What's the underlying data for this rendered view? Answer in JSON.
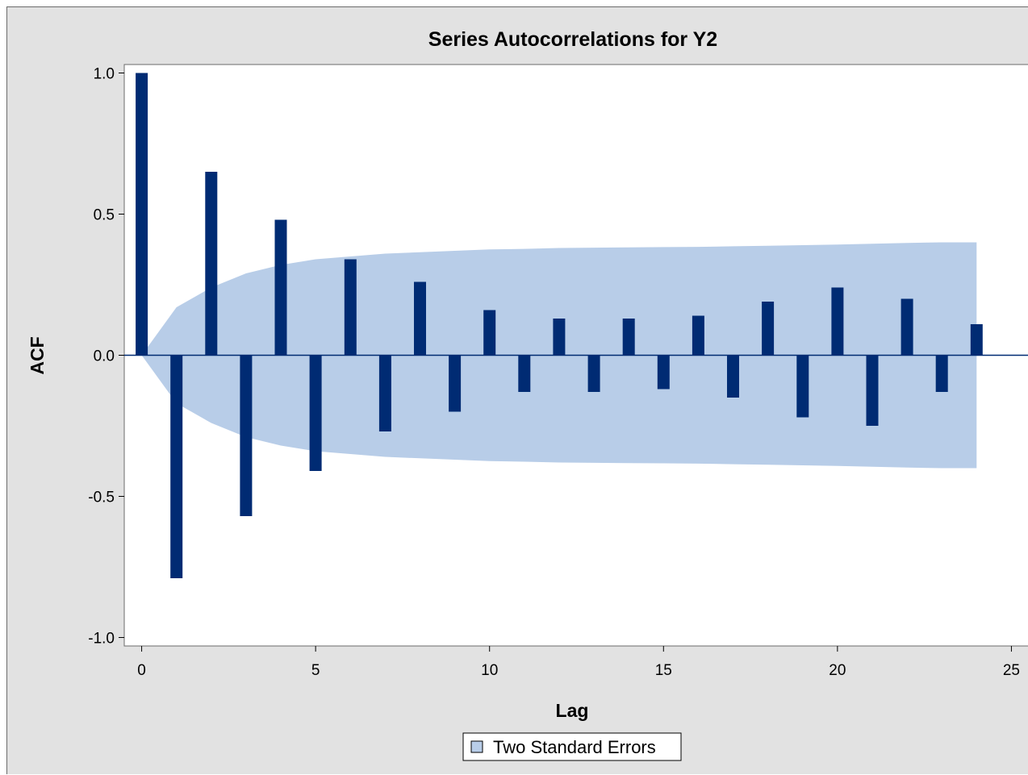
{
  "chart_data": {
    "type": "bar",
    "title": "Series Autocorrelations for Y2",
    "xlabel": "Lag",
    "ylabel": "ACF",
    "xlim": [
      -0.5,
      25.5
    ],
    "ylim": [
      -1.03,
      1.03
    ],
    "x_ticks": [
      0,
      5,
      10,
      15,
      20,
      25
    ],
    "x_tick_labels": [
      "0",
      "5",
      "10",
      "15",
      "20",
      "25"
    ],
    "y_ticks": [
      -1.0,
      -0.5,
      0.0,
      0.5,
      1.0
    ],
    "y_tick_labels": [
      "-1.0",
      "-0.5",
      "0.0",
      "0.5",
      "1.0"
    ],
    "lags": [
      0,
      1,
      2,
      3,
      4,
      5,
      6,
      7,
      8,
      9,
      10,
      11,
      12,
      13,
      14,
      15,
      16,
      17,
      18,
      19,
      20,
      21,
      22,
      23,
      24
    ],
    "values": [
      1.0,
      -0.79,
      0.65,
      -0.57,
      0.48,
      -0.41,
      0.34,
      -0.27,
      0.26,
      -0.2,
      0.16,
      -0.13,
      0.13,
      -0.13,
      0.13,
      -0.12,
      0.14,
      -0.15,
      0.19,
      -0.22,
      0.24,
      -0.25,
      0.2,
      -0.13,
      0.11
    ],
    "std_err_band": {
      "name": "Two Standard Errors",
      "lags": [
        0,
        1,
        2,
        3,
        4,
        5,
        6,
        7,
        8,
        9,
        10,
        11,
        12,
        13,
        14,
        15,
        16,
        17,
        18,
        19,
        20,
        21,
        22,
        23,
        24
      ],
      "upper": [
        0.0,
        0.17,
        0.24,
        0.29,
        0.32,
        0.34,
        0.35,
        0.36,
        0.365,
        0.37,
        0.375,
        0.377,
        0.38,
        0.381,
        0.382,
        0.383,
        0.384,
        0.386,
        0.388,
        0.39,
        0.392,
        0.395,
        0.398,
        0.4,
        0.4
      ],
      "lower": [
        0.0,
        -0.17,
        -0.24,
        -0.29,
        -0.32,
        -0.34,
        -0.35,
        -0.36,
        -0.365,
        -0.37,
        -0.375,
        -0.377,
        -0.38,
        -0.381,
        -0.382,
        -0.383,
        -0.384,
        -0.386,
        -0.388,
        -0.39,
        -0.392,
        -0.395,
        -0.398,
        -0.4,
        -0.4
      ]
    },
    "grid": false,
    "legend_position": "bottom-center",
    "colors": {
      "bar": "#002b73",
      "band": "#b8cde8",
      "zero_line": "#002b73",
      "background": "#e2e2e2",
      "plot_background": "#ffffff"
    }
  },
  "legend": {
    "label": "Two Standard Errors"
  }
}
